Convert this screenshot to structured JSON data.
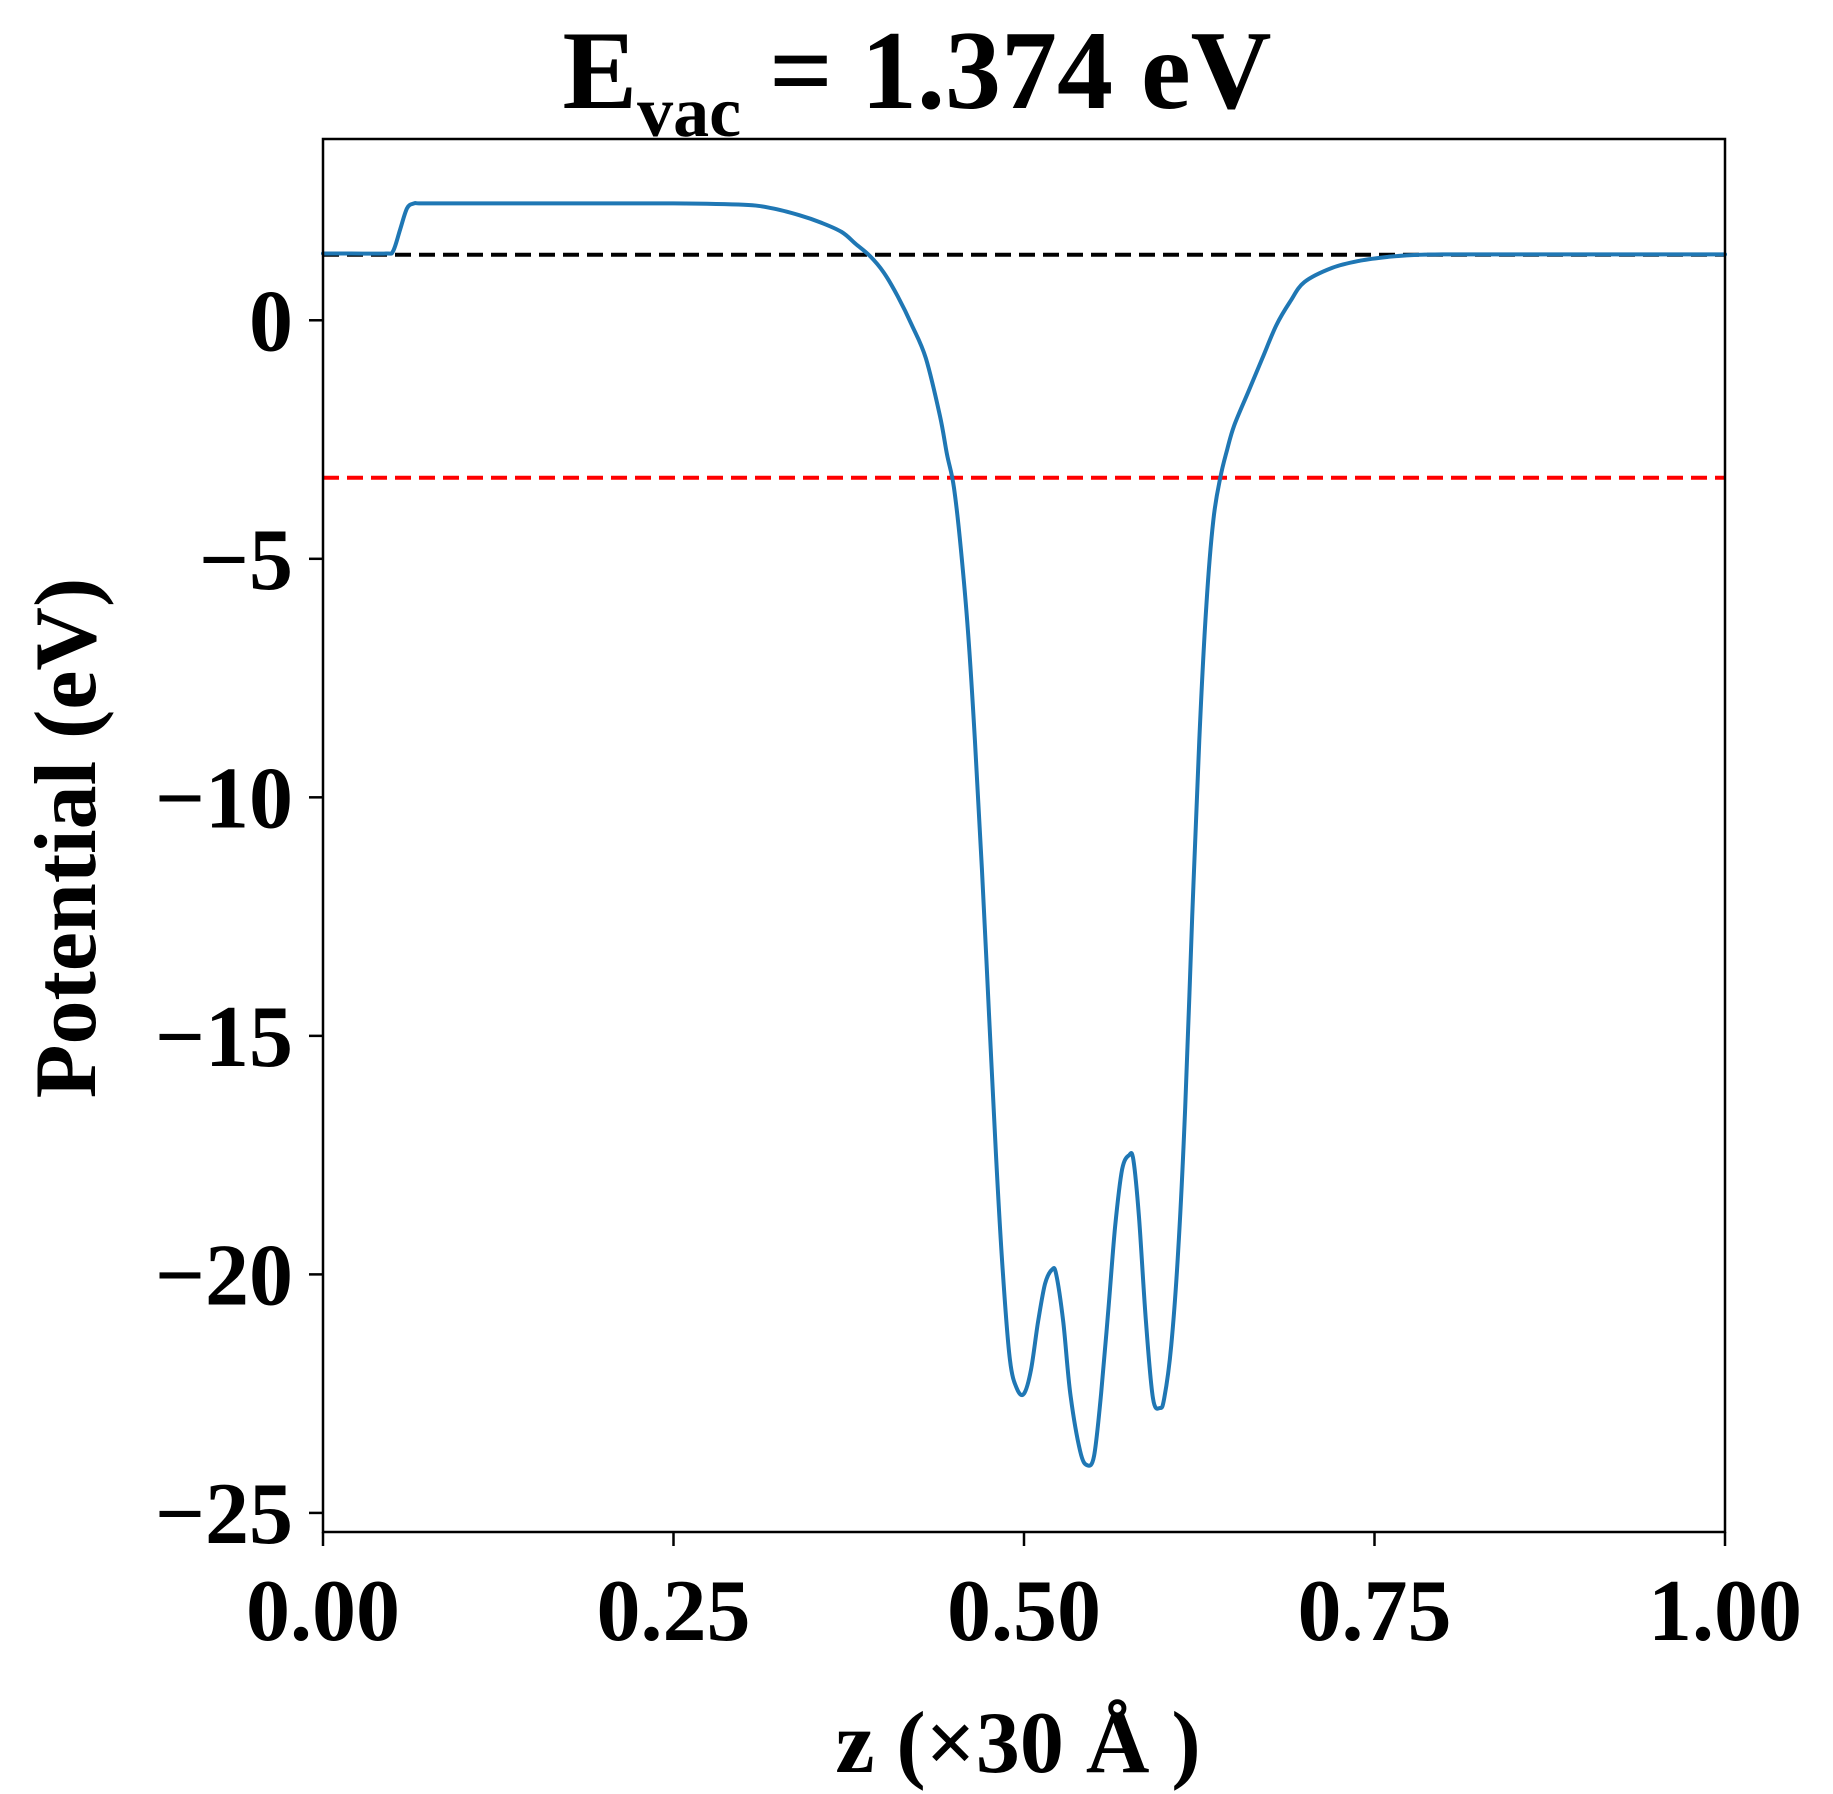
{
  "chart_data": {
    "type": "line",
    "title": {
      "main": "E",
      "subscript": "vac",
      "rest": " = 1.374 eV"
    },
    "xlabel": "z (×30 Å )",
    "ylabel": "Potential (eV)",
    "xlim": [
      0.0,
      1.0
    ],
    "ylim": [
      -25.4,
      3.8
    ],
    "xticks": [
      0.0,
      0.25,
      0.5,
      0.75,
      1.0
    ],
    "xtick_labels": [
      "0.00",
      "0.25",
      "0.50",
      "0.75",
      "1.00"
    ],
    "yticks": [
      0,
      -5,
      -10,
      -15,
      -20,
      -25
    ],
    "ytick_labels": [
      "0",
      "−5",
      "−10",
      "−15",
      "−20",
      "−25"
    ],
    "grid": false,
    "legend": "none",
    "reference_lines": [
      {
        "y": 1.374,
        "color": "#000000",
        "style": "dashed"
      },
      {
        "y": -3.3,
        "color": "#ff0000",
        "style": "dashed"
      }
    ],
    "series": [
      {
        "color": "#1f77b4",
        "x": [
          0.0,
          0.02,
          0.045,
          0.05,
          0.055,
          0.06,
          0.065,
          0.07,
          0.1,
          0.15,
          0.2,
          0.25,
          0.3,
          0.32,
          0.34,
          0.355,
          0.37,
          0.38,
          0.39,
          0.4,
          0.41,
          0.42,
          0.43,
          0.44,
          0.445,
          0.45,
          0.455,
          0.46,
          0.465,
          0.47,
          0.475,
          0.48,
          0.485,
          0.49,
          0.495,
          0.5,
          0.505,
          0.51,
          0.515,
          0.52,
          0.523,
          0.528,
          0.533,
          0.54,
          0.545,
          0.55,
          0.555,
          0.56,
          0.565,
          0.57,
          0.575,
          0.578,
          0.582,
          0.587,
          0.592,
          0.597,
          0.6,
          0.605,
          0.61,
          0.615,
          0.62,
          0.625,
          0.63,
          0.635,
          0.64,
          0.645,
          0.65,
          0.66,
          0.67,
          0.68,
          0.69,
          0.7,
          0.72,
          0.74,
          0.76,
          0.78,
          0.8,
          0.85,
          0.9,
          0.95,
          1.0
        ],
        "y": [
          1.4,
          1.4,
          1.4,
          1.45,
          1.9,
          2.35,
          2.45,
          2.45,
          2.45,
          2.45,
          2.45,
          2.45,
          2.42,
          2.35,
          2.2,
          2.05,
          1.85,
          1.6,
          1.35,
          1.0,
          0.5,
          -0.1,
          -0.8,
          -2.0,
          -2.8,
          -3.5,
          -4.8,
          -6.5,
          -8.8,
          -11.5,
          -14.5,
          -17.5,
          -20.0,
          -21.8,
          -22.4,
          -22.5,
          -22.0,
          -21.0,
          -20.2,
          -19.9,
          -20.0,
          -21.0,
          -22.5,
          -23.7,
          -24.0,
          -23.8,
          -22.5,
          -20.8,
          -19.0,
          -17.8,
          -17.5,
          -17.6,
          -18.8,
          -21.0,
          -22.6,
          -22.8,
          -22.6,
          -21.5,
          -19.5,
          -16.5,
          -12.5,
          -8.8,
          -6.0,
          -4.2,
          -3.3,
          -2.7,
          -2.2,
          -1.5,
          -0.8,
          -0.1,
          0.4,
          0.8,
          1.1,
          1.25,
          1.33,
          1.37,
          1.38,
          1.38,
          1.38,
          1.38,
          1.38
        ]
      }
    ]
  }
}
